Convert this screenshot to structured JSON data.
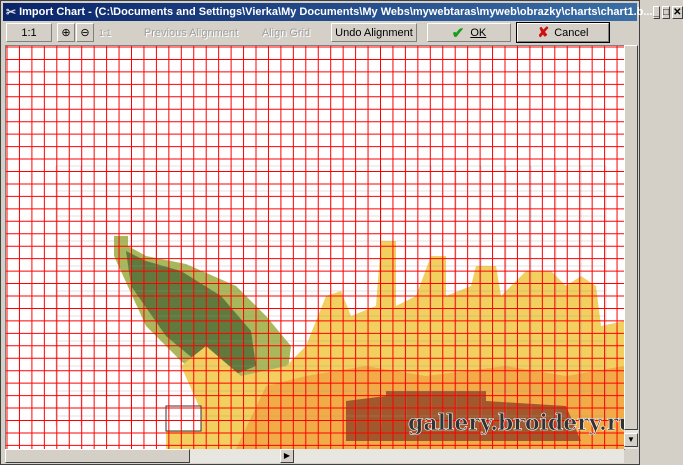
{
  "window": {
    "title": "Import Chart - (C:\\Documents and Settings\\Vierka\\My Documents\\My Webs\\mywebtaras\\myweb\\obrazky\\charts\\chart1.b...",
    "controls": {
      "minimize": "_",
      "maximize": "□",
      "close": "✕"
    }
  },
  "toolbar": {
    "zoom_actual": "1:1",
    "zoom_in_icon": "magnifier-plus",
    "zoom_out_icon": "magnifier-minus",
    "fit_label": "1:1",
    "previous_alignment": "Previous Alignment",
    "align_grid": "Align Grid",
    "undo_alignment": "Undo Alignment",
    "ok": "OK",
    "cancel": "Cancel"
  },
  "canvas": {
    "watermark": "gallery.broidery.ru",
    "grid_color": "#ff0000",
    "colors": {
      "dark_green": "#5f7a3c",
      "light_green": "#a8b85a",
      "yellow": "#f2d060",
      "orange": "#f0a040",
      "brown": "#a0582c"
    }
  }
}
